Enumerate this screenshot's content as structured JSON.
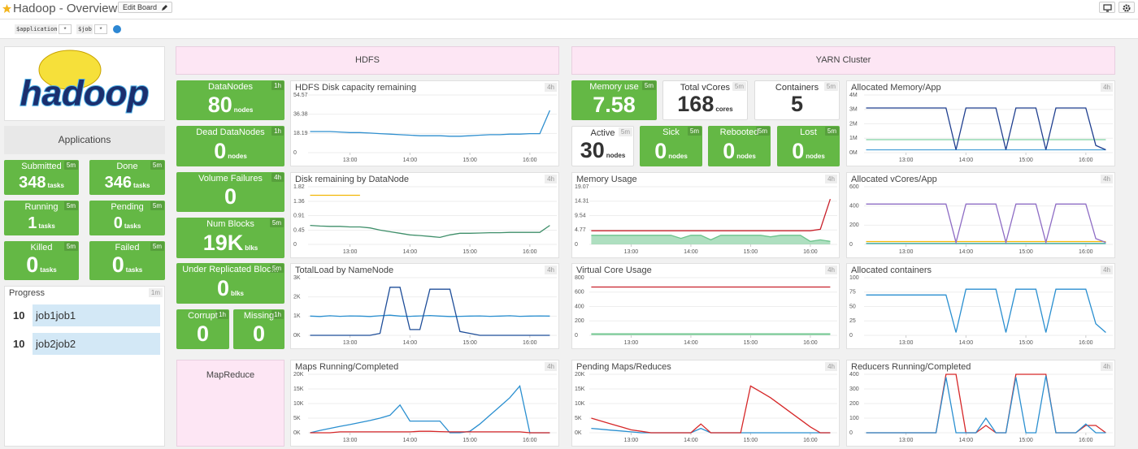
{
  "header": {
    "title": "Hadoop - Overview",
    "edit_button": "Edit Board"
  },
  "template_vars": [
    {
      "name": "$application",
      "value": "*"
    },
    {
      "name": "$job",
      "value": "*"
    }
  ],
  "logo_text": "hadoop",
  "sections": [
    "HDFS",
    "YARN Cluster",
    "MapReduce"
  ],
  "applications": {
    "title": "Applications",
    "tiles": [
      {
        "label": "Submitted",
        "value": 348,
        "unit": "tasks",
        "span": "5m"
      },
      {
        "label": "Done",
        "value": 346,
        "unit": "tasks",
        "span": "5m"
      },
      {
        "label": "Running",
        "value": 1,
        "unit": "tasks",
        "span": "5m"
      },
      {
        "label": "Pending",
        "value": 0,
        "unit": "tasks",
        "span": "5m"
      },
      {
        "label": "Killed",
        "value": 0,
        "unit": "tasks",
        "span": "5m"
      },
      {
        "label": "Failed",
        "value": 0,
        "unit": "tasks",
        "span": "5m"
      }
    ]
  },
  "progress": {
    "title": "Progress",
    "span": "1m",
    "rows": [
      {
        "count": 10,
        "name": "job1job1"
      },
      {
        "count": 10,
        "name": "job2job2"
      }
    ]
  },
  "hdfs_tiles": [
    {
      "label": "DataNodes",
      "value": 80,
      "unit": "nodes",
      "span": "1h"
    },
    {
      "label": "Dead DataNodes",
      "value": 0,
      "unit": "nodes",
      "span": "1h"
    },
    {
      "label": "Volume Failures",
      "value": 0,
      "span": "4h"
    },
    {
      "label": "Num Blocks",
      "value": 19000,
      "value_label": "19K",
      "unit": "blks",
      "span": "5m"
    },
    {
      "label": "Under Replicated Bloc...",
      "value": 0,
      "unit": "blks",
      "span": "5m"
    },
    {
      "label": "Corrupt",
      "value": 0,
      "span": "1h"
    },
    {
      "label": "Missing",
      "value": 0,
      "span": "1h"
    }
  ],
  "yarn_tiles": [
    {
      "label": "Memory use",
      "value": 7.58,
      "span": "5m"
    },
    {
      "label": "Total vCores",
      "value": 168,
      "unit": "cores",
      "span": "5m"
    },
    {
      "label": "Containers",
      "value": 5,
      "span": "5m"
    },
    {
      "label": "Active",
      "value": 30,
      "unit": "nodes",
      "span": "5m"
    },
    {
      "label": "Sick",
      "value": 0,
      "unit": "nodes",
      "span": "5m"
    },
    {
      "label": "Rebooted",
      "value": 0,
      "unit": "nodes",
      "span": "5m"
    },
    {
      "label": "Lost",
      "value": 0,
      "unit": "nodes",
      "span": "5m"
    }
  ],
  "time_axis": {
    "x": [
      740,
      750,
      760,
      770,
      780,
      790,
      800,
      810,
      820,
      830,
      840,
      850,
      860,
      870,
      880,
      890,
      900,
      910,
      920,
      930,
      940,
      950,
      960,
      970,
      980
    ],
    "xlim": [
      738,
      987
    ],
    "xticks": [
      {
        "value": 780,
        "label": "13:00"
      },
      {
        "value": 840,
        "label": "14:00"
      },
      {
        "value": 900,
        "label": "15:00"
      },
      {
        "value": 960,
        "label": "16:00"
      }
    ]
  },
  "charts": [
    {
      "title": "HDFS Disk capacity remaining",
      "span": "4h",
      "ylim": [
        0,
        54.57
      ],
      "yticks": [
        0,
        18.19,
        36.38,
        54.57
      ],
      "series": [
        {
          "color": "#2f8fcf",
          "values": [
            20,
            20,
            20,
            19.5,
            19,
            19,
            18.5,
            18,
            17.5,
            17,
            16.5,
            16,
            16,
            16,
            15.5,
            15.5,
            16,
            16.5,
            17,
            17,
            17.5,
            17.5,
            18,
            18,
            40
          ]
        }
      ]
    },
    {
      "title": "Disk remaining by DataNode",
      "span": "4h",
      "ylim": [
        0,
        1.82
      ],
      "yticks": [
        0,
        0.45,
        0.91,
        1.36,
        1.82
      ],
      "series": [
        {
          "color": "#f2b705",
          "values": [
            1.55,
            1.55,
            1.55,
            1.55,
            1.55,
            1.55,
            null,
            null,
            null,
            null,
            null,
            null,
            null,
            null,
            null,
            null,
            null,
            null,
            null,
            null,
            null,
            null,
            null,
            null,
            null
          ]
        },
        {
          "color": "#3f8f6a",
          "values": [
            0.6,
            0.58,
            0.57,
            0.57,
            0.55,
            0.55,
            0.52,
            0.45,
            0.4,
            0.35,
            0.3,
            0.28,
            0.25,
            0.22,
            0.3,
            0.35,
            0.35,
            0.36,
            0.37,
            0.37,
            0.38,
            0.38,
            0.38,
            0.38,
            0.6
          ]
        }
      ]
    },
    {
      "title": "TotalLoad by NameNode",
      "span": "4h",
      "ylim": [
        0,
        3000
      ],
      "yticks": [
        {
          "value": 0,
          "label": "0K"
        },
        {
          "value": 1000,
          "label": "1K"
        },
        {
          "value": 2000,
          "label": "2K"
        },
        {
          "value": 3000,
          "label": "3K"
        }
      ],
      "series": [
        {
          "color": "#2a8fd0",
          "values": [
            1000,
            980,
            1020,
            990,
            1010,
            1000,
            980,
            1020,
            1050,
            1000,
            990,
            1010,
            1030,
            1000,
            980,
            990,
            1000,
            1010,
            990,
            1000,
            1020,
            990,
            1000,
            1010,
            1000
          ]
        },
        {
          "color": "#1f4e99",
          "values": [
            0,
            0,
            0,
            0,
            0,
            0,
            0,
            100,
            2500,
            2500,
            300,
            300,
            2400,
            2400,
            2400,
            200,
            100,
            0,
            0,
            0,
            0,
            0,
            0,
            0,
            0
          ]
        }
      ]
    },
    {
      "title": "Maps Running/Completed",
      "span": "4h",
      "ylim": [
        0,
        20000
      ],
      "yticks": [
        {
          "value": 0,
          "label": "0K"
        },
        {
          "value": 5000,
          "label": "5K"
        },
        {
          "value": 10000,
          "label": "10K"
        },
        {
          "value": 15000,
          "label": "15K"
        },
        {
          "value": 20000,
          "label": "20K"
        }
      ],
      "series": [
        {
          "color": "#2a8fd0",
          "values": [
            0,
            800,
            1500,
            2200,
            2800,
            3500,
            4200,
            5000,
            6000,
            9500,
            4000,
            4000,
            4000,
            4000,
            0,
            0,
            500,
            3000,
            6000,
            9000,
            12000,
            16000,
            0,
            0,
            0
          ]
        },
        {
          "color": "#d62728",
          "values": [
            0,
            0,
            0,
            300,
            300,
            300,
            300,
            300,
            300,
            300,
            300,
            500,
            500,
            400,
            300,
            300,
            300,
            300,
            300,
            300,
            300,
            300,
            0,
            0,
            0
          ]
        }
      ]
    },
    {
      "title": "Memory Usage",
      "span": "4h",
      "ylim": [
        0,
        19.07
      ],
      "yticks": [
        0,
        4.77,
        9.54,
        14.31,
        19.07
      ],
      "series": [
        {
          "color": "#6cc48c",
          "area": true,
          "values": [
            3,
            3,
            3,
            3,
            3,
            3,
            3,
            3,
            3,
            2,
            3,
            3,
            1.5,
            3,
            3,
            3,
            3,
            3,
            2.5,
            3,
            3,
            3,
            1,
            1.5,
            1
          ]
        },
        {
          "color": "#c8202a",
          "values": [
            4.5,
            4.5,
            4.5,
            4.5,
            4.5,
            4.5,
            4.5,
            4.5,
            4.5,
            4.5,
            4.5,
            4.5,
            4.5,
            4.5,
            4.5,
            4.5,
            4.5,
            4.5,
            4.5,
            4.5,
            4.5,
            4.5,
            4.5,
            5,
            15
          ]
        }
      ]
    },
    {
      "title": "Virtual Core Usage",
      "span": "4h",
      "ylim": [
        0,
        800
      ],
      "yticks": [
        0,
        200,
        400,
        600,
        800
      ],
      "series": [
        {
          "color": "#6cc48c",
          "area": true,
          "values": [
            20,
            20,
            20,
            20,
            20,
            20,
            20,
            20,
            20,
            20,
            20,
            20,
            20,
            20,
            20,
            20,
            20,
            20,
            20,
            20,
            20,
            20,
            20,
            20,
            20
          ]
        },
        {
          "color": "#c8202a",
          "values": [
            670,
            670,
            670,
            670,
            670,
            670,
            670,
            670,
            670,
            670,
            670,
            670,
            670,
            670,
            670,
            670,
            670,
            670,
            670,
            670,
            670,
            670,
            670,
            670,
            670
          ]
        }
      ]
    },
    {
      "title": "Pending Maps/Reduces",
      "span": "4h",
      "ylim": [
        0,
        20000
      ],
      "yticks": [
        {
          "value": 0,
          "label": "0K"
        },
        {
          "value": 5000,
          "label": "5K"
        },
        {
          "value": 10000,
          "label": "10K"
        },
        {
          "value": 15000,
          "label": "15K"
        },
        {
          "value": 20000,
          "label": "20K"
        }
      ],
      "series": [
        {
          "color": "#2a8fd0",
          "values": [
            1500,
            1200,
            900,
            600,
            300,
            0,
            0,
            0,
            0,
            0,
            0,
            1500,
            0,
            0,
            0,
            0,
            0,
            0,
            0,
            0,
            0,
            0,
            0,
            0,
            0
          ]
        },
        {
          "color": "#d62728",
          "values": [
            5000,
            4000,
            3000,
            2000,
            1000,
            500,
            0,
            0,
            0,
            0,
            0,
            3000,
            0,
            0,
            0,
            0,
            16000,
            14000,
            12000,
            9500,
            7000,
            4500,
            2000,
            0,
            0
          ]
        }
      ]
    },
    {
      "title": "Allocated Memory/App",
      "span": "4h",
      "ylim": [
        0,
        4000000
      ],
      "yticks": [
        {
          "value": 0,
          "label": "0M"
        },
        {
          "value": 1000000,
          "label": "1M"
        },
        {
          "value": 2000000,
          "label": "2M"
        },
        {
          "value": 3000000,
          "label": "3M"
        },
        {
          "value": 4000000,
          "label": "4M"
        }
      ],
      "series": [
        {
          "color": "#7fd0a0",
          "values": [
            900000,
            900000,
            900000,
            900000,
            900000,
            900000,
            900000,
            900000,
            900000,
            900000,
            900000,
            900000,
            900000,
            900000,
            900000,
            900000,
            900000,
            900000,
            900000,
            900000,
            900000,
            900000,
            900000,
            900000,
            900000
          ]
        },
        {
          "color": "#4aa0d8",
          "values": [
            200000,
            200000,
            200000,
            200000,
            200000,
            200000,
            200000,
            200000,
            200000,
            200000,
            200000,
            200000,
            200000,
            200000,
            200000,
            200000,
            200000,
            200000,
            200000,
            200000,
            200000,
            200000,
            200000,
            200000,
            200000
          ]
        },
        {
          "color": "#1f3f8f",
          "values": [
            3100000,
            3100000,
            3100000,
            3100000,
            3100000,
            3100000,
            3100000,
            3100000,
            3100000,
            200000,
            3100000,
            3100000,
            3100000,
            3100000,
            200000,
            3100000,
            3100000,
            3100000,
            200000,
            3100000,
            3100000,
            3100000,
            3100000,
            500000,
            200000
          ]
        }
      ]
    },
    {
      "title": "Allocated vCores/App",
      "span": "4h",
      "ylim": [
        0,
        600
      ],
      "yticks": [
        0,
        200,
        400,
        600
      ],
      "series": [
        {
          "color": "#f2b705",
          "values": [
            30,
            30,
            30,
            30,
            30,
            30,
            30,
            30,
            30,
            30,
            30,
            30,
            30,
            30,
            30,
            30,
            30,
            30,
            30,
            30,
            30,
            30,
            30,
            30,
            30
          ]
        },
        {
          "color": "#3aa9a0",
          "values": [
            10,
            10,
            10,
            10,
            10,
            10,
            10,
            10,
            10,
            10,
            10,
            10,
            10,
            10,
            10,
            10,
            10,
            10,
            10,
            10,
            10,
            10,
            10,
            10,
            10
          ]
        },
        {
          "color": "#8e6cc4",
          "values": [
            420,
            420,
            420,
            420,
            420,
            420,
            420,
            420,
            420,
            20,
            420,
            420,
            420,
            420,
            20,
            420,
            420,
            420,
            20,
            420,
            420,
            420,
            420,
            60,
            20
          ]
        }
      ]
    },
    {
      "title": "Allocated containers",
      "span": "4h",
      "ylim": [
        0,
        100
      ],
      "yticks": [
        0,
        25,
        50,
        75,
        100
      ],
      "series": [
        {
          "color": "#2a8fd0",
          "values": [
            70,
            70,
            70,
            70,
            70,
            70,
            70,
            70,
            70,
            5,
            80,
            80,
            80,
            80,
            5,
            80,
            80,
            80,
            5,
            80,
            80,
            80,
            80,
            20,
            5
          ]
        }
      ]
    },
    {
      "title": "Reducers Running/Completed",
      "span": "4h",
      "ylim": [
        0,
        400
      ],
      "yticks": [
        0,
        100,
        200,
        300,
        400
      ],
      "series": [
        {
          "color": "#d62728",
          "values": [
            0,
            0,
            0,
            0,
            0,
            0,
            0,
            0,
            400,
            400,
            0,
            0,
            50,
            0,
            0,
            400,
            400,
            400,
            400,
            0,
            0,
            0,
            50,
            50,
            0
          ]
        },
        {
          "color": "#2a8fd0",
          "values": [
            0,
            0,
            0,
            0,
            0,
            0,
            0,
            0,
            380,
            0,
            0,
            0,
            100,
            0,
            0,
            380,
            0,
            0,
            390,
            0,
            0,
            0,
            60,
            0,
            0
          ]
        }
      ]
    }
  ]
}
